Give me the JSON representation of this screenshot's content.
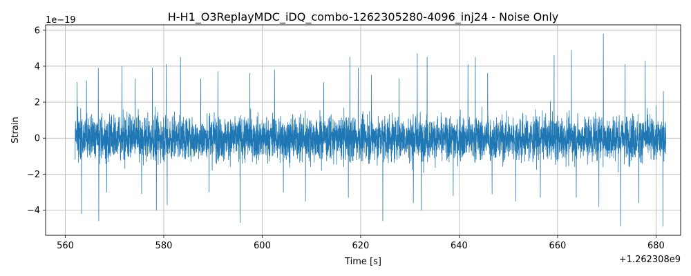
{
  "chart_data": {
    "type": "line",
    "title": "H-H1_O3ReplayMDC_iDQ_combo-1262305280-4096_inj24 - Noise Only",
    "xlabel": "Time [s]",
    "ylabel": "Strain",
    "x_offset_label": "+1.262308e9",
    "y_scale_label": "1e−19",
    "xlim": [
      556,
      685
    ],
    "ylim": [
      -5.4,
      6.3
    ],
    "x_ticks": [
      560,
      580,
      600,
      620,
      640,
      660,
      680
    ],
    "x_tick_labels": [
      "560",
      "580",
      "600",
      "620",
      "640",
      "660",
      "680"
    ],
    "y_ticks": [
      -4,
      -2,
      0,
      2,
      4,
      6
    ],
    "y_tick_labels": [
      "−4",
      "−2",
      "0",
      "2",
      "4",
      "6"
    ],
    "grid": true,
    "series": [
      {
        "color": "#1f77b4",
        "x_range": [
          562.0,
          682.0
        ],
        "description_values": {
          "max": 5.8,
          "max_at": 669.3,
          "min": -4.9,
          "min_at": 681.4,
          "typical_envelope": [
            -2.2,
            2.2
          ]
        },
        "peaks": [
          {
            "x": 562.4,
            "y": 3.1
          },
          {
            "x": 564.3,
            "y": 3.2
          },
          {
            "x": 566.7,
            "y": 3.9
          },
          {
            "x": 571.5,
            "y": 4.0
          },
          {
            "x": 574.2,
            "y": 3.3
          },
          {
            "x": 577.7,
            "y": 3.9
          },
          {
            "x": 580.5,
            "y": 4.1
          },
          {
            "x": 583.4,
            "y": 4.5
          },
          {
            "x": 587.5,
            "y": 3.3
          },
          {
            "x": 591.0,
            "y": 3.7
          },
          {
            "x": 597.5,
            "y": 3.6
          },
          {
            "x": 602.5,
            "y": 3.8
          },
          {
            "x": 608.8,
            "y": 3.3
          },
          {
            "x": 612.5,
            "y": 3.1
          },
          {
            "x": 617.8,
            "y": 4.5
          },
          {
            "x": 619.5,
            "y": 3.9
          },
          {
            "x": 622.2,
            "y": 3.5
          },
          {
            "x": 627.8,
            "y": 3.3
          },
          {
            "x": 631.5,
            "y": 4.7
          },
          {
            "x": 633.5,
            "y": 4.5
          },
          {
            "x": 641.8,
            "y": 4.1
          },
          {
            "x": 643.3,
            "y": 4.5
          },
          {
            "x": 645.8,
            "y": 3.6
          },
          {
            "x": 651.5,
            "y": 4.0
          },
          {
            "x": 656.5,
            "y": 3.7
          },
          {
            "x": 659.3,
            "y": 4.6
          },
          {
            "x": 662.8,
            "y": 4.9
          },
          {
            "x": 669.3,
            "y": 5.8
          },
          {
            "x": 673.7,
            "y": 4.1
          },
          {
            "x": 677.8,
            "y": 4.3
          },
          {
            "x": 681.5,
            "y": 2.6
          }
        ],
        "troughs": [
          {
            "x": 563.3,
            "y": -4.2
          },
          {
            "x": 566.8,
            "y": -4.6
          },
          {
            "x": 568.4,
            "y": -3.0
          },
          {
            "x": 575.5,
            "y": -3.1
          },
          {
            "x": 578.5,
            "y": -4.0
          },
          {
            "x": 580.7,
            "y": -3.7
          },
          {
            "x": 589.2,
            "y": -3.0
          },
          {
            "x": 595.5,
            "y": -4.7
          },
          {
            "x": 604.3,
            "y": -3.0
          },
          {
            "x": 608.8,
            "y": -3.5
          },
          {
            "x": 617.5,
            "y": -3.3
          },
          {
            "x": 624.5,
            "y": -4.6
          },
          {
            "x": 630.7,
            "y": -3.6
          },
          {
            "x": 632.3,
            "y": -4.0
          },
          {
            "x": 638.8,
            "y": -3.2
          },
          {
            "x": 646.7,
            "y": -3.1
          },
          {
            "x": 651.5,
            "y": -3.5
          },
          {
            "x": 656.5,
            "y": -3.3
          },
          {
            "x": 663.8,
            "y": -3.3
          },
          {
            "x": 668.4,
            "y": -3.8
          },
          {
            "x": 672.8,
            "y": -4.9
          },
          {
            "x": 676.5,
            "y": -3.6
          },
          {
            "x": 681.4,
            "y": -4.9
          }
        ]
      }
    ]
  }
}
